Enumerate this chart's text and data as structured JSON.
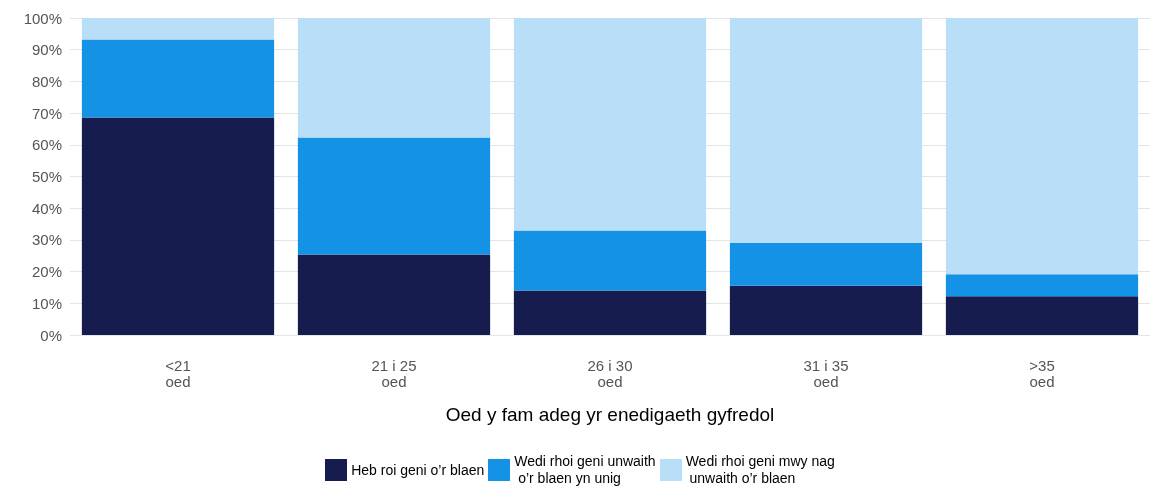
{
  "chart_data": {
    "type": "bar",
    "stacked": true,
    "xlabel": "Oed y fam adeg yr enedigaeth gyfredol",
    "categories": [
      "<21\noed",
      "21 i 25\noed",
      "26 i 30\noed",
      "31 i 35\noed",
      ">35\noed"
    ],
    "series": [
      {
        "name": "Heb roi geni o’r blaen",
        "color": "#171c4f",
        "values": [
          68.6,
          25.4,
          14.0,
          15.5,
          12.2
        ]
      },
      {
        "name": "Wedi rhoi geni unwaith\n o’r blaen yn unig",
        "color": "#1493e6",
        "values": [
          24.6,
          36.9,
          19.0,
          13.5,
          7.0
        ]
      },
      {
        "name": "Wedi rhoi geni mwy nag\n unwaith o’r blaen",
        "color": "#b9def7",
        "values": [
          6.8,
          37.7,
          67.0,
          71.0,
          80.8
        ]
      }
    ],
    "ylim": [
      0,
      100
    ],
    "yticks": [
      {
        "value": 0,
        "label": "0%"
      },
      {
        "value": 10,
        "label": "10%"
      },
      {
        "value": 20,
        "label": "20%"
      },
      {
        "value": 30,
        "label": "30%"
      },
      {
        "value": 40,
        "label": "40%"
      },
      {
        "value": 50,
        "label": "50%"
      },
      {
        "value": 60,
        "label": "60%"
      },
      {
        "value": 70,
        "label": "70%"
      },
      {
        "value": 80,
        "label": "80%"
      },
      {
        "value": 90,
        "label": "90%"
      },
      {
        "value": 100,
        "label": "100%"
      }
    ],
    "grid": "y",
    "legend": "bottom"
  }
}
